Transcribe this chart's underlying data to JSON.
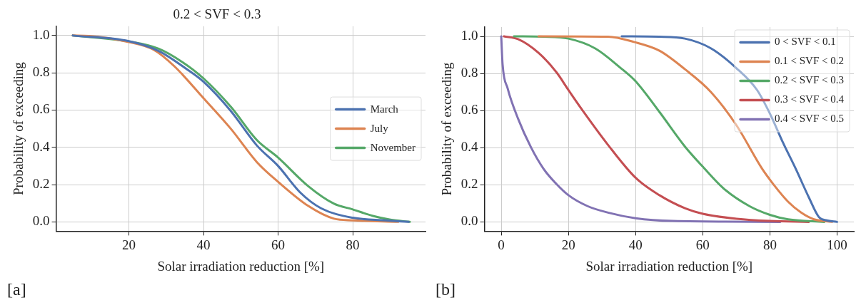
{
  "chart_data": [
    {
      "type": "line",
      "title": "0.2 < SVF < 0.3",
      "xlabel": "Solar irradiation reduction [%]",
      "ylabel": "Probability of exceeding",
      "annotations": [
        "[a]"
      ],
      "xlim": [
        0.5,
        99.5
      ],
      "xticks": [
        20,
        40,
        60,
        80
      ],
      "ylim": [
        -0.05,
        1.05
      ],
      "yticks": [
        {
          "value": 0,
          "label": "0.0"
        },
        {
          "value": 0.2,
          "label": "0.2"
        },
        {
          "value": 0.4,
          "label": "0.4"
        },
        {
          "value": 0.6,
          "label": "0.6"
        },
        {
          "value": 0.8,
          "label": "0.8"
        },
        {
          "value": 1,
          "label": "1.0"
        }
      ],
      "grid": true,
      "legend": "center right",
      "marker": "none",
      "line_style": "solid",
      "series": [
        {
          "name": "March",
          "color": "#4c72b0",
          "x": [
            5,
            20,
            28,
            35.7,
            40,
            47.4,
            54.3,
            60,
            66,
            71.5,
            80,
            88.8,
            95
          ],
          "values": [
            1,
            0.97,
            0.917,
            0.817,
            0.752,
            0.593,
            0.41,
            0.3,
            0.156,
            0.073,
            0.022,
            0.008,
            0
          ]
        },
        {
          "name": "July",
          "color": "#dd8452",
          "x": [
            5,
            9.4,
            20,
            26.7,
            32.2,
            40,
            47.4,
            54.3,
            60,
            68.1,
            75,
            80,
            92.2
          ],
          "values": [
            1,
            0.998,
            0.965,
            0.923,
            0.835,
            0.664,
            0.498,
            0.321,
            0.215,
            0.085,
            0.017,
            0.008,
            0
          ]
        },
        {
          "name": "November",
          "color": "#55a868",
          "x": [
            5,
            20,
            28,
            34.3,
            40,
            47.4,
            54.3,
            60,
            68.1,
            75,
            80,
            85.4,
            90.1,
            95.3
          ],
          "values": [
            1,
            0.968,
            0.929,
            0.858,
            0.77,
            0.616,
            0.439,
            0.345,
            0.191,
            0.097,
            0.067,
            0.032,
            0.012,
            0
          ]
        }
      ]
    },
    {
      "type": "line",
      "xlabel": "Solar irradiation reduction [%]",
      "ylabel": "Probability of exceeding",
      "annotations": [
        "[b]"
      ],
      "xlim": [
        -5,
        105
      ],
      "xticks": [
        0,
        20,
        40,
        60,
        80,
        100
      ],
      "ylim": [
        -0.05,
        1.05
      ],
      "yticks": [
        {
          "value": 0,
          "label": "0.0"
        },
        {
          "value": 0.2,
          "label": "0.2"
        },
        {
          "value": 0.4,
          "label": "0.4"
        },
        {
          "value": 0.6,
          "label": "0.6"
        },
        {
          "value": 0.8,
          "label": "0.8"
        },
        {
          "value": 1,
          "label": "1.0"
        }
      ],
      "grid": true,
      "legend": "top right",
      "marker": "none",
      "line_style": "solid",
      "series": [
        {
          "name": "0 < SVF < 0.1",
          "color": "#4c72b0",
          "x": [
            35.9,
            47.1,
            54.7,
            62.5,
            70,
            76.2,
            80.1,
            83.9,
            87.7,
            91.6,
            94.6,
            96.9,
            100
          ],
          "values": [
            1,
            0.998,
            0.988,
            0.935,
            0.829,
            0.71,
            0.58,
            0.427,
            0.286,
            0.132,
            0.026,
            0.008,
            0
          ]
        },
        {
          "name": "0.1 < SVF < 0.2",
          "color": "#dd8452",
          "x": [
            11.1,
            31.8,
            39.5,
            47.1,
            54.7,
            62.5,
            70,
            77.7,
            81.5,
            85.4,
            89.3,
            93.1,
            98.5
          ],
          "values": [
            1,
            0.998,
            0.97,
            0.923,
            0.823,
            0.699,
            0.522,
            0.286,
            0.192,
            0.109,
            0.05,
            0.014,
            0
          ]
        },
        {
          "name": "0.2 < SVF < 0.3",
          "color": "#55a868",
          "x": [
            3.8,
            12.6,
            20,
            28,
            35.6,
            40,
            47.1,
            54.8,
            60,
            66.3,
            73.9,
            80,
            85.4,
            96.2
          ],
          "values": [
            1,
            0.998,
            0.988,
            0.935,
            0.829,
            0.758,
            0.593,
            0.404,
            0.298,
            0.179,
            0.085,
            0.038,
            0.014,
            0
          ]
        },
        {
          "name": "0.3 < SVF < 0.4",
          "color": "#c44e52",
          "x": [
            0.8,
            5,
            11.1,
            16.5,
            20,
            24.1,
            31.8,
            40,
            47.1,
            54.8,
            60,
            70.1,
            80,
            91.6
          ],
          "values": [
            1,
            0.985,
            0.911,
            0.805,
            0.711,
            0.604,
            0.415,
            0.238,
            0.144,
            0.073,
            0.044,
            0.017,
            0.005,
            0
          ]
        },
        {
          "name": "0.4 < SVF < 0.5",
          "color": "#8172b3",
          "x": [
            0,
            0.4,
            1.9,
            5,
            8.8,
            12.6,
            16.5,
            20,
            25.7,
            31.8,
            40,
            51,
            83.1
          ],
          "values": [
            1,
            0.85,
            0.72,
            0.557,
            0.404,
            0.286,
            0.203,
            0.144,
            0.085,
            0.05,
            0.02,
            0.005,
            0
          ]
        }
      ]
    }
  ]
}
